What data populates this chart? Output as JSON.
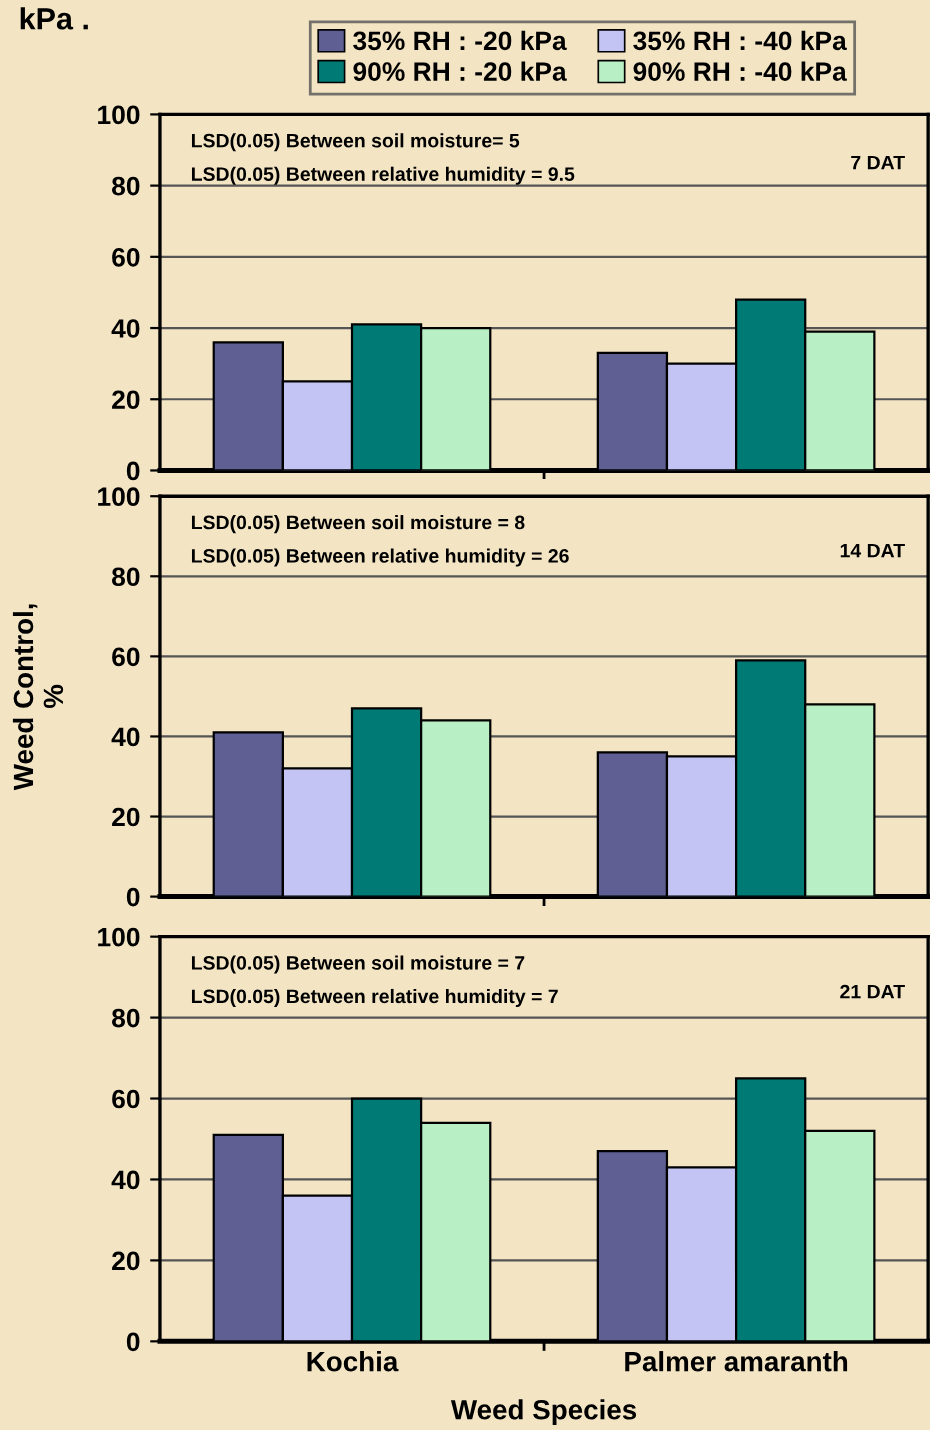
{
  "chart_data": [
    {
      "type": "bar",
      "title": "kPa .",
      "categories": [
        null,
        null
      ],
      "ylim": [
        0,
        100
      ],
      "yticks": [
        0,
        20,
        40,
        60,
        80,
        100
      ],
      "grid": "y",
      "legend": "top",
      "tick_labels": "y",
      "annotations": [
        "LSD(0.05) Between soil moisture= 5",
        "LSD(0.05) Between relative humidity = 9.5",
        "7 DAT"
      ],
      "series": [
        {
          "name": "35% RH : -20 kPa",
          "color": "#5f5f94",
          "values": [
            36,
            33
          ]
        },
        {
          "name": "35% RH : -40 kPa",
          "color": "#c4c4f4",
          "values": [
            25,
            30
          ]
        },
        {
          "name": "90% RH : -20 kPa",
          "color": "#007a74",
          "values": [
            41,
            48
          ]
        },
        {
          "name": "90% RH : -40 kPa",
          "color": "#b9efc4",
          "values": [
            40,
            39
          ]
        }
      ]
    },
    {
      "type": "bar",
      "ylabel": "Weed Control,\n%",
      "categories": [
        null,
        null
      ],
      "ylim": [
        0,
        100
      ],
      "yticks": [
        0,
        20,
        40,
        60,
        80,
        100
      ],
      "grid": "y",
      "tick_labels": "y",
      "annotations": [
        "LSD(0.05) Between soil moisture = 8",
        "LSD(0.05) Between relative humidity = 26",
        "14 DAT"
      ],
      "series": [
        {
          "color": "#5f5f94",
          "values": [
            41,
            36
          ]
        },
        {
          "color": "#c4c4f4",
          "values": [
            32,
            35
          ]
        },
        {
          "color": "#007a74",
          "values": [
            47,
            59
          ]
        },
        {
          "color": "#b9efc4",
          "values": [
            44,
            48
          ]
        }
      ]
    },
    {
      "type": "bar",
      "xlabel": "Weed Species",
      "categories": [
        "Kochia",
        "Palmer amaranth"
      ],
      "ylim": [
        0,
        100
      ],
      "yticks": [
        0,
        20,
        40,
        60,
        80,
        100
      ],
      "grid": "y",
      "annotations": [
        "LSD(0.05) Between soil moisture = 7",
        "LSD(0.05) Between relative humidity = 7",
        "21 DAT"
      ],
      "series": [
        {
          "color": "#5f5f94",
          "values": [
            51,
            47
          ]
        },
        {
          "color": "#c4c4f4",
          "values": [
            36,
            43
          ]
        },
        {
          "color": "#007a74",
          "values": [
            60,
            65
          ]
        },
        {
          "color": "#b9efc4",
          "values": [
            54,
            52
          ]
        }
      ]
    }
  ]
}
